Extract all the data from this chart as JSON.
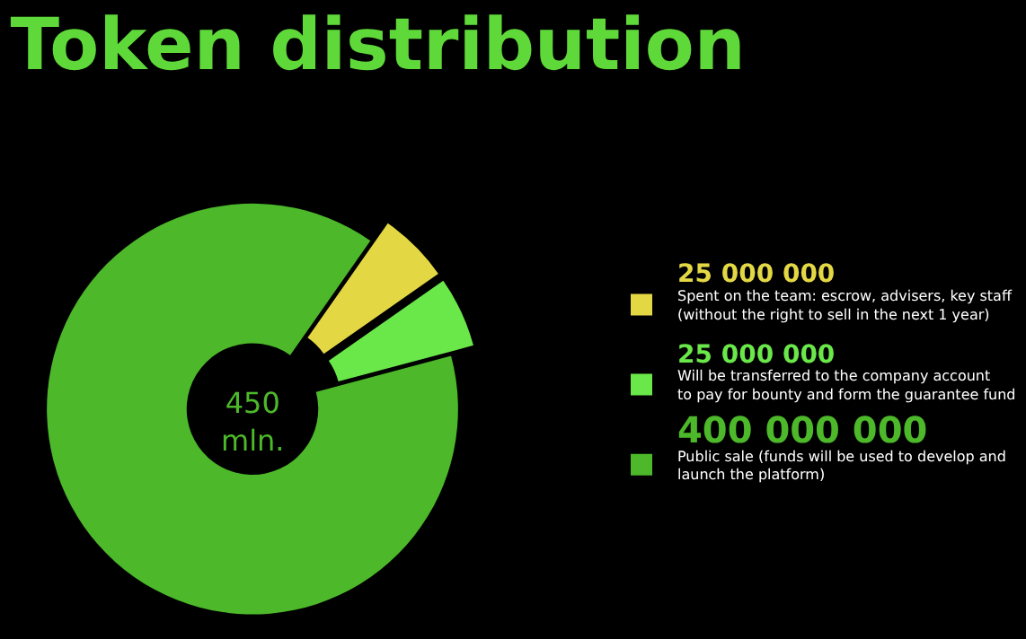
{
  "chart_data": {
    "type": "donut",
    "title": "Token distribution",
    "categories": [
      "Spent on the team: escrow, advisers, key staff\n(without the right to sell in the next 1 year)",
      "Will be transferred to the company account\nto pay for bounty and form the guarantee fund",
      "Public sale (funds will be used to develop and\nlaunch the platform)"
    ],
    "values": [
      25000000,
      25000000,
      400000000
    ],
    "value_labels": [
      "25 000 000",
      "25 000 000",
      "400 000 000"
    ],
    "colors": [
      "#e3d844",
      "#6ae84a",
      "#4cb82a"
    ],
    "annotations": [
      "450\nmln."
    ],
    "legend": "right"
  }
}
